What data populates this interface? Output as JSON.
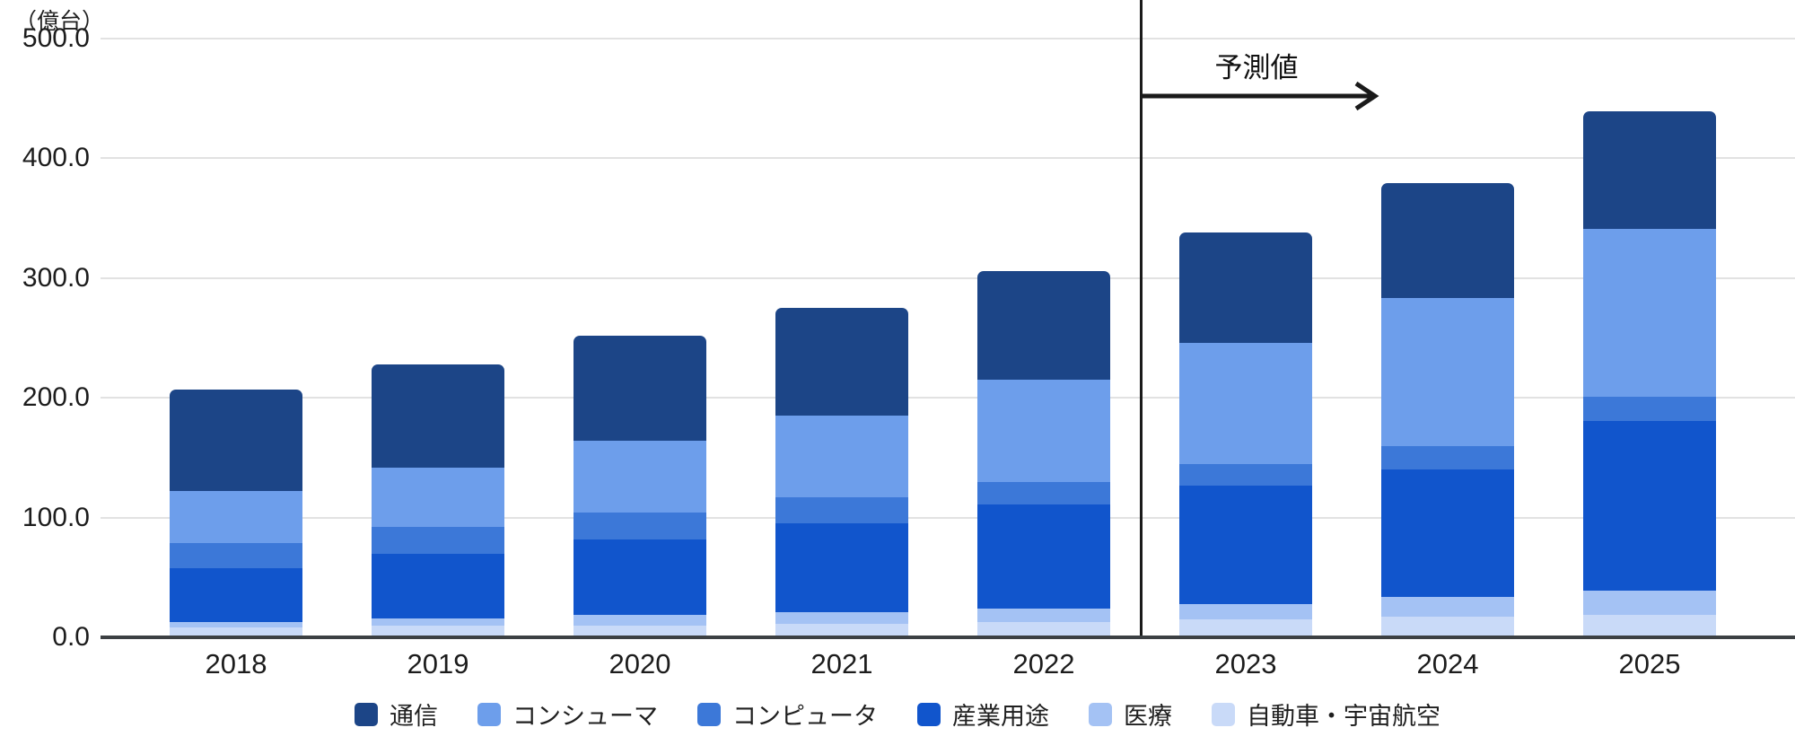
{
  "chart_data": {
    "type": "bar",
    "variant": "stacked-column",
    "title": "",
    "unit_label": "（億台）",
    "xlabel": "",
    "ylabel": "（億台）",
    "categories": [
      "2018",
      "2019",
      "2020",
      "2021",
      "2022",
      "2023",
      "2024",
      "2025"
    ],
    "series": [
      {
        "key": "automotive-aerospace",
        "name": "自動車・宇宙航空",
        "color": "#c9daf8",
        "values": [
          8,
          10,
          10,
          11,
          13,
          15,
          17,
          19
        ]
      },
      {
        "key": "medical",
        "name": "医療",
        "color": "#a4c2f4",
        "values": [
          5,
          6,
          9,
          10,
          11,
          13,
          17,
          20
        ]
      },
      {
        "key": "industrial",
        "name": "産業用途",
        "color": "#1155cc",
        "values": [
          45,
          54,
          63,
          74,
          87,
          99,
          106,
          142
        ]
      },
      {
        "key": "computer",
        "name": "コンピュータ",
        "color": "#3c78d8",
        "values": [
          21,
          22,
          22,
          22,
          19,
          18,
          20,
          20
        ]
      },
      {
        "key": "consumer",
        "name": "コンシューマ",
        "color": "#6d9eeb",
        "values": [
          43,
          50,
          60,
          68,
          85,
          101,
          123,
          140
        ]
      },
      {
        "key": "communication",
        "name": "通信",
        "color": "#1c4587",
        "values": [
          85,
          86,
          88,
          90,
          91,
          92,
          96,
          98
        ]
      }
    ],
    "stack_order_note": "series listed bottom-to-top",
    "totals": [
      207,
      228,
      252,
      275,
      306,
      338,
      379,
      439
    ],
    "legend_order": [
      "通信",
      "コンシューマ",
      "コンピュータ",
      "産業用途",
      "医療",
      "自動車・宇宙航空"
    ],
    "legend_position": "bottom",
    "grid": true,
    "ylim": [
      0,
      500
    ],
    "y_ticks": [
      {
        "value": 0,
        "label": "0.0"
      },
      {
        "value": 100,
        "label": "100.0"
      },
      {
        "value": 200,
        "label": "200.0"
      },
      {
        "value": 300,
        "label": "300.0"
      },
      {
        "value": 400,
        "label": "400.0"
      },
      {
        "value": 500,
        "label": "500.0"
      }
    ],
    "forecast_annotation": {
      "label": "予測値",
      "applies_from_category": "2023"
    }
  }
}
